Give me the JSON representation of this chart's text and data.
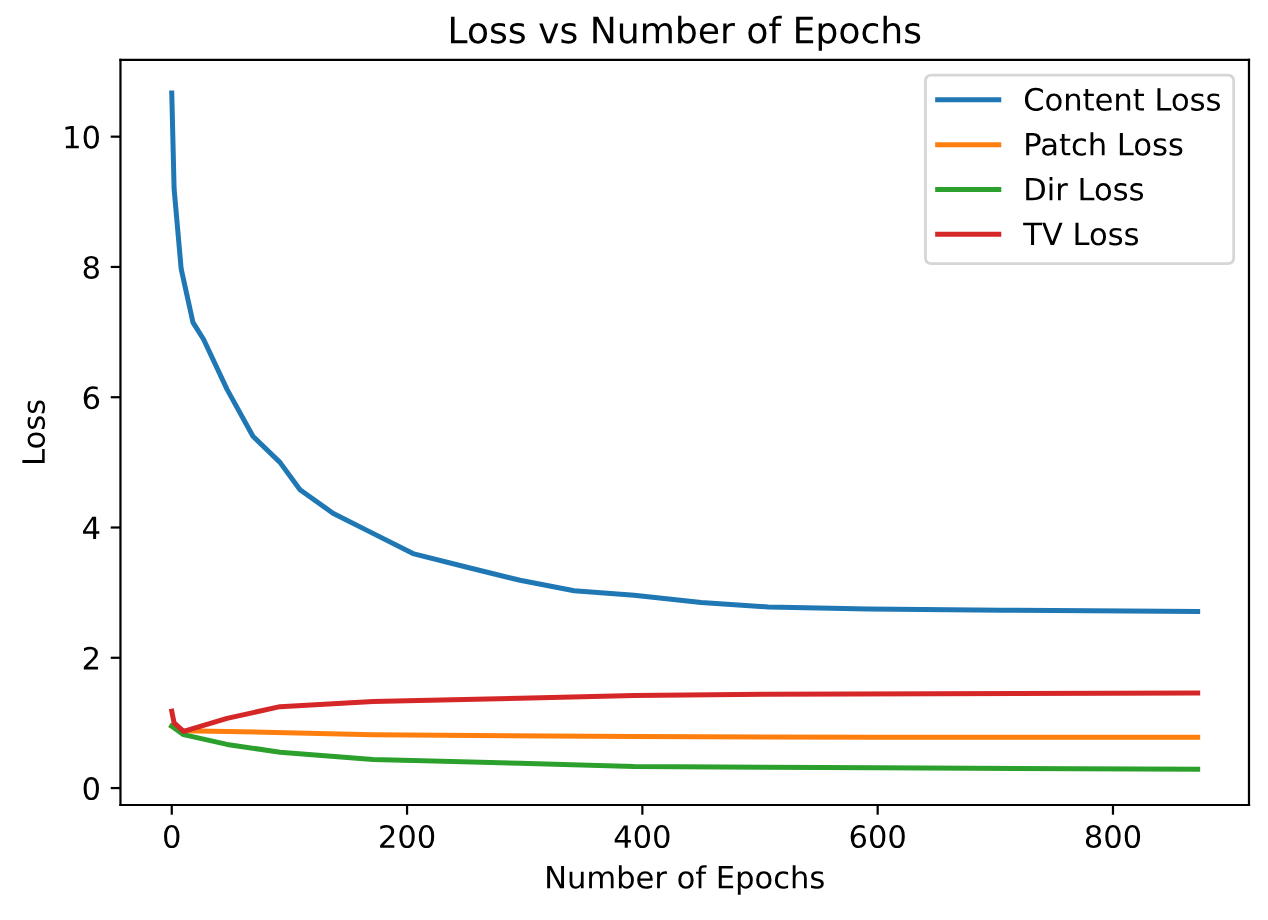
{
  "chart_data": {
    "type": "line",
    "title": "Loss vs Number of Epochs",
    "xlabel": "Number of Epochs",
    "ylabel": "Loss",
    "xlim": [
      -43.6,
      915.6
    ],
    "ylim": [
      -0.26,
      11.18
    ],
    "xticks": [
      0,
      200,
      400,
      600,
      800
    ],
    "yticks": [
      0,
      2,
      4,
      6,
      8,
      10
    ],
    "legend": "top right",
    "grid": false,
    "series": [
      {
        "name": "Content Loss",
        "color": "#1f77b4",
        "x": [
          0,
          2,
          8,
          18,
          27,
          47,
          69,
          92,
          109,
          137,
          171,
          205,
          251,
          296,
          342,
          393,
          450,
          507,
          592,
          706,
          872
        ],
        "values": [
          10.67,
          9.2,
          7.97,
          7.15,
          6.89,
          6.12,
          5.4,
          5.0,
          4.58,
          4.22,
          3.91,
          3.6,
          3.39,
          3.19,
          3.03,
          2.96,
          2.85,
          2.78,
          2.75,
          2.73,
          2.71
        ]
      },
      {
        "name": "Patch Loss",
        "color": "#ff7f0e",
        "x": [
          0,
          10,
          47,
          171,
          393,
          600,
          872
        ],
        "values": [
          0.95,
          0.88,
          0.87,
          0.82,
          0.79,
          0.78,
          0.78
        ]
      },
      {
        "name": "Dir Loss",
        "color": "#2ca02c",
        "x": [
          0,
          10,
          47,
          92,
          171,
          296,
          393,
          600,
          872
        ],
        "values": [
          0.95,
          0.82,
          0.67,
          0.55,
          0.44,
          0.38,
          0.33,
          0.31,
          0.29
        ]
      },
      {
        "name": "TV Loss",
        "color": "#d62728",
        "x": [
          0,
          2,
          10,
          47,
          92,
          171,
          296,
          393,
          507,
          872
        ],
        "values": [
          1.18,
          1.0,
          0.87,
          1.07,
          1.25,
          1.33,
          1.38,
          1.42,
          1.44,
          1.46
        ]
      }
    ]
  }
}
